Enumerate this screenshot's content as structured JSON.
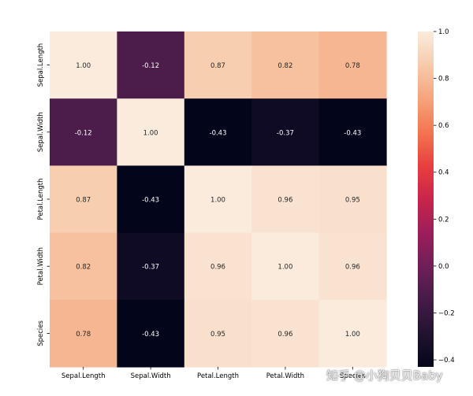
{
  "chart_data": {
    "type": "heatmap",
    "title": "",
    "xlabel": "",
    "ylabel": "",
    "x_categories": [
      "Sepal.Length",
      "Sepal.Width",
      "Petal.Length",
      "Petal.Width",
      "Species"
    ],
    "y_categories": [
      "Sepal.Length",
      "Sepal.Width",
      "Petal.Length",
      "Petal.Width",
      "Species"
    ],
    "values": [
      [
        1.0,
        -0.12,
        0.87,
        0.82,
        0.78
      ],
      [
        -0.12,
        1.0,
        -0.43,
        -0.37,
        -0.43
      ],
      [
        0.87,
        -0.43,
        1.0,
        0.96,
        0.95
      ],
      [
        0.82,
        -0.37,
        0.96,
        1.0,
        0.96
      ],
      [
        0.78,
        -0.43,
        0.95,
        0.96,
        1.0
      ]
    ],
    "annotations_format": "0.00",
    "colormap": "rocket",
    "colorbar": {
      "range": [
        -0.43,
        1.0
      ],
      "ticks": [
        1.0,
        0.8,
        0.6,
        0.4,
        0.2,
        0.0,
        -0.2,
        -0.4
      ],
      "tick_labels": [
        "1.0",
        "0.8",
        "0.6",
        "0.4",
        "0.2",
        "0.0",
        "−0.2",
        "−0.4"
      ],
      "placement": "right"
    },
    "grid": false
  },
  "watermark": "知乎 @小狗贝贝Baby"
}
